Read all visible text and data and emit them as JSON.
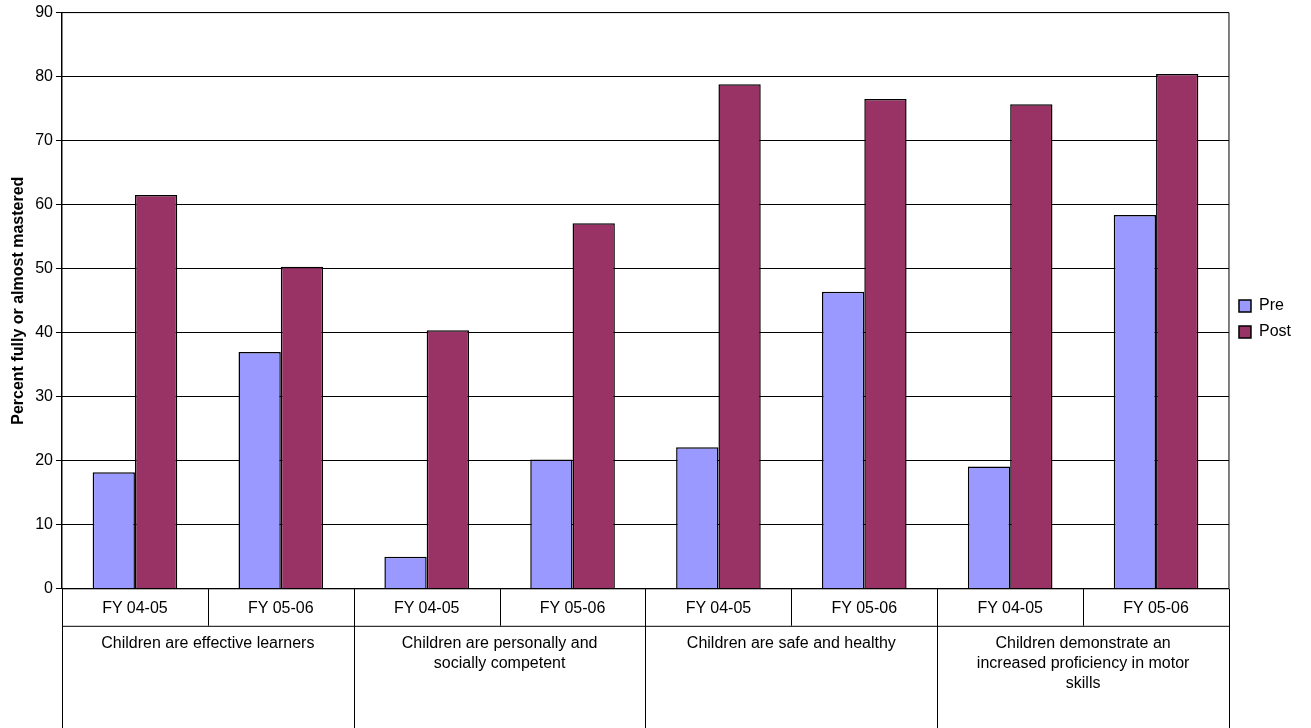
{
  "chart_data": {
    "type": "bar",
    "ylabel": "Percent fully or almost mastered",
    "categories": [
      "FY 04-05",
      "FY 05-06",
      "FY 04-05",
      "FY 05-06",
      "FY 04-05",
      "FY 05-06",
      "FY 04-05",
      "FY 05-06"
    ],
    "series": [
      {
        "name": "Pre",
        "color": "#9999ff",
        "values": [
          18.2,
          37,
          5,
          20.2,
          22.1,
          46.4,
          19.1,
          58.4
        ]
      },
      {
        "name": "Post",
        "color": "#993366",
        "values": [
          61.5,
          50.3,
          40.4,
          57.1,
          78.8,
          76.5,
          75.7,
          80.4
        ]
      }
    ],
    "annotations": [
      "Children are effective learners",
      "Children are personally and socially competent",
      "Children are safe and healthy",
      "Children demonstrate an increased proficiency in motor skills"
    ],
    "ylim": [
      0,
      90
    ],
    "yticks": [
      0,
      10,
      20,
      30,
      40,
      50,
      60,
      70,
      80,
      90
    ],
    "grid": "y",
    "legend": "right"
  }
}
